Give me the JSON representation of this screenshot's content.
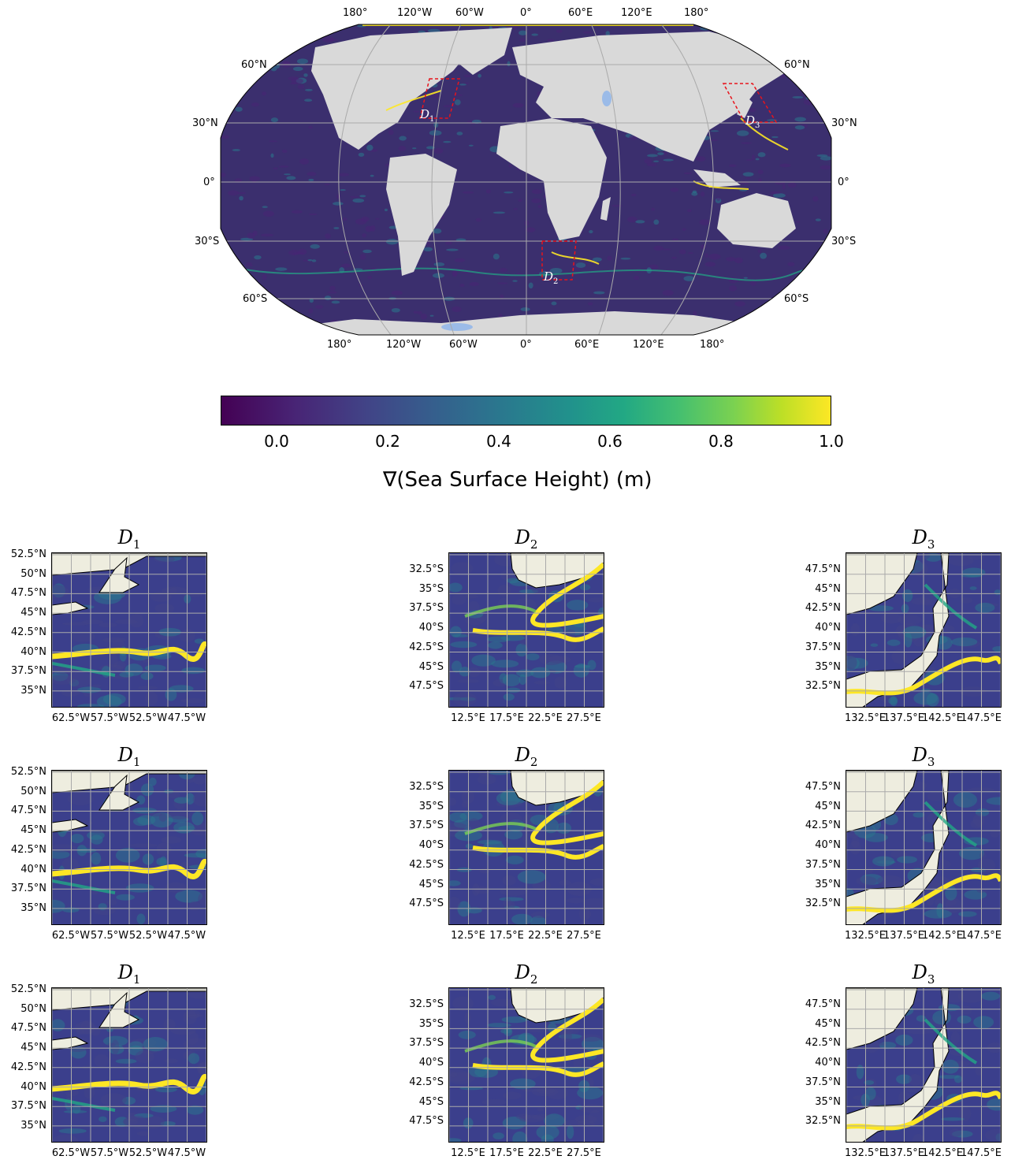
{
  "world_map": {
    "top_lon_labels": [
      "180°",
      "120°W",
      "60°W",
      "0°",
      "60°E",
      "120°E",
      "180°"
    ],
    "bottom_lon_labels": [
      "180°",
      "120°W",
      "60°W",
      "0°",
      "60°E",
      "120°E",
      "180°"
    ],
    "left_lat_labels": [
      "60°N",
      "30°N",
      "0°",
      "30°S",
      "60°S"
    ],
    "right_lat_labels": [
      "60°N",
      "30°N",
      "0°",
      "30°S",
      "60°S"
    ],
    "region_labels": [
      {
        "name": "D",
        "sub": "1"
      },
      {
        "name": "D",
        "sub": "2"
      },
      {
        "name": "D",
        "sub": "3"
      }
    ],
    "colors": {
      "ocean": "#3b2f6e",
      "land": "#d9d9d9",
      "lakes": "#9bbbe8",
      "box": "#e8141c",
      "front": "#fde725"
    }
  },
  "colorbar": {
    "ticks": [
      "0.0",
      "0.2",
      "0.4",
      "0.6",
      "0.8",
      "1.0"
    ],
    "range": [
      -0.1,
      1.0
    ],
    "label": "∇(Sea Surface Height) (m)",
    "colormap": "viridis"
  },
  "panels": {
    "columns": [
      {
        "title": "D",
        "sub": "1",
        "y_ticks": [
          "52.5°N",
          "50°N",
          "47.5°N",
          "45°N",
          "42.5°N",
          "40°N",
          "37.5°N",
          "35°N"
        ],
        "x_ticks": [
          "62.5°W",
          "57.5°W",
          "52.5°W",
          "47.5°W"
        ]
      },
      {
        "title": "D",
        "sub": "2",
        "y_ticks": [
          "32.5°S",
          "35°S",
          "37.5°S",
          "40°S",
          "42.5°S",
          "45°S",
          "47.5°S"
        ],
        "x_ticks": [
          "12.5°E",
          "17.5°E",
          "22.5°E",
          "27.5°E"
        ]
      },
      {
        "title": "D",
        "sub": "3",
        "y_ticks": [
          "47.5°N",
          "45°N",
          "42.5°N",
          "40°N",
          "37.5°N",
          "35°N",
          "32.5°N"
        ],
        "x_ticks": [
          "132.5°E",
          "137.5°E",
          "142.5°E",
          "147.5°E"
        ]
      }
    ],
    "colors": {
      "land": "#eeeddf",
      "ocean": "#3b3f8c",
      "front": "#fde725",
      "grid": "#aaaaaa"
    }
  }
}
